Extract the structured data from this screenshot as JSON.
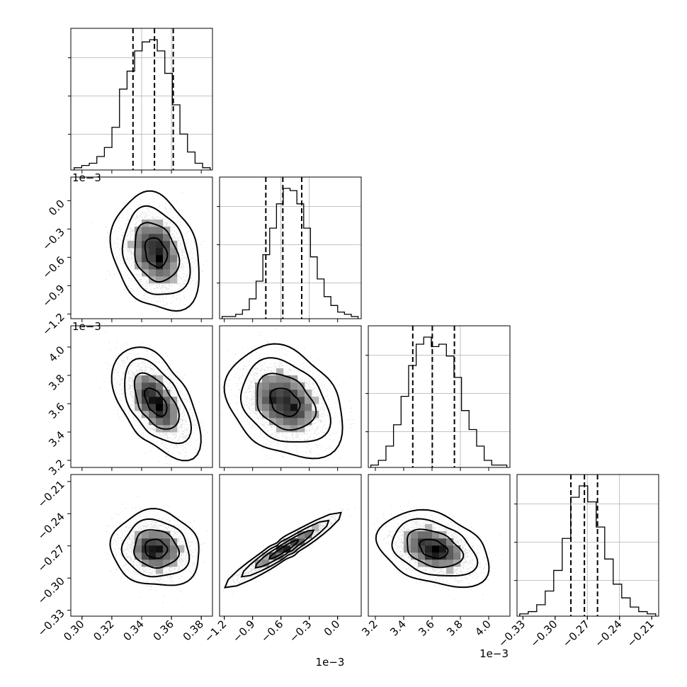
{
  "chart_data": {
    "type": "corner",
    "parameters": [
      {
        "index": 0,
        "name": "",
        "range": [
          0.2925,
          0.3875
        ],
        "ticks": [
          "0.30",
          "0.32",
          "0.34",
          "0.36",
          "0.38"
        ],
        "tick_values": [
          0.3,
          0.32,
          0.34,
          0.36,
          0.38
        ],
        "offset_text": "",
        "quantiles": [
          0.3342,
          0.3486,
          0.3612
        ],
        "hist": [
          1,
          2,
          3,
          6,
          10,
          19,
          36,
          44,
          53,
          57,
          58,
          53,
          43,
          29,
          16,
          8,
          3,
          1
        ],
        "hist_max": 58,
        "grid_ticks": [
          0.34,
          0.36
        ]
      },
      {
        "index": 1,
        "name": "",
        "range": [
          -0.00125,
          0.00025
        ],
        "ticks": [
          "−1.2",
          "−0.9",
          "−0.6",
          "−0.3",
          "0.0"
        ],
        "tick_values": [
          -0.0012,
          -0.0009,
          -0.0006,
          -0.0003,
          0.0
        ],
        "offset_text": "1e−3",
        "quantiles": [
          -0.00076,
          -0.00058,
          -0.00038
        ],
        "hist": [
          1,
          1,
          2,
          4,
          9,
          17,
          29,
          41,
          52,
          59,
          58,
          52,
          41,
          28,
          18,
          10,
          6,
          3,
          2,
          1
        ],
        "hist_max": 59,
        "grid_ticks": [
          -0.0006,
          -0.0003
        ]
      },
      {
        "index": 2,
        "name": "",
        "range": [
          0.00315,
          0.00415
        ],
        "ticks": [
          "3.2",
          "3.4",
          "3.6",
          "3.8",
          "4.0"
        ],
        "tick_values": [
          0.0032,
          0.0034,
          0.0036,
          0.0038,
          0.004
        ],
        "offset_text": "1e−3",
        "quantiles": [
          0.003464,
          0.003602,
          0.003758
        ],
        "hist": [
          1,
          3,
          9,
          18,
          30,
          43,
          52,
          55,
          51,
          52,
          47,
          38,
          24,
          16,
          9,
          3,
          1,
          1
        ],
        "hist_max": 55,
        "grid_ticks": [
          0.0036,
          0.0038
        ]
      },
      {
        "index": 3,
        "name": "",
        "range": [
          -0.3355,
          -0.2035
        ],
        "ticks": [
          "−0.33",
          "−0.30",
          "−0.27",
          "−0.24",
          "−0.21"
        ],
        "tick_values": [
          -0.33,
          -0.3,
          -0.27,
          -0.24,
          -0.21
        ],
        "offset_text": "",
        "quantiles": [
          -0.2853,
          -0.2727,
          -0.2605
        ],
        "hist": [
          1,
          2,
          5,
          11,
          20,
          34,
          52,
          57,
          50,
          39,
          25,
          14,
          8,
          4,
          2,
          1
        ],
        "hist_max": 57,
        "grid_ticks": [
          -0.27,
          -0.24
        ]
      }
    ],
    "pairs": [
      {
        "row": 1,
        "col": 0,
        "mean": [
          0.3495,
          -0.00055
        ],
        "sd": [
          0.0105,
          0.00022
        ],
        "corr": -0.25
      },
      {
        "row": 2,
        "col": 0,
        "mean": [
          0.3495,
          0.00361
        ],
        "sd": [
          0.0105,
          0.00014
        ],
        "corr": -0.55
      },
      {
        "row": 2,
        "col": 1,
        "mean": [
          -0.00056,
          0.00361
        ],
        "sd": [
          0.00022,
          0.00014
        ],
        "corr": -0.3
      },
      {
        "row": 3,
        "col": 0,
        "mean": [
          0.3495,
          -0.2728
        ],
        "sd": [
          0.0105,
          0.0125
        ],
        "corr": -0.1
      },
      {
        "row": 3,
        "col": 1,
        "mean": [
          -0.00056,
          -0.2728
        ],
        "sd": [
          0.00022,
          0.0125
        ],
        "corr": 0.95
      },
      {
        "row": 3,
        "col": 2,
        "mean": [
          0.00361,
          -0.2728
        ],
        "sd": [
          0.00014,
          0.0125
        ],
        "corr": -0.35
      }
    ],
    "contour_levels_sigma": [
      0.5,
      1.0,
      1.5,
      2.0
    ],
    "grid": true
  }
}
